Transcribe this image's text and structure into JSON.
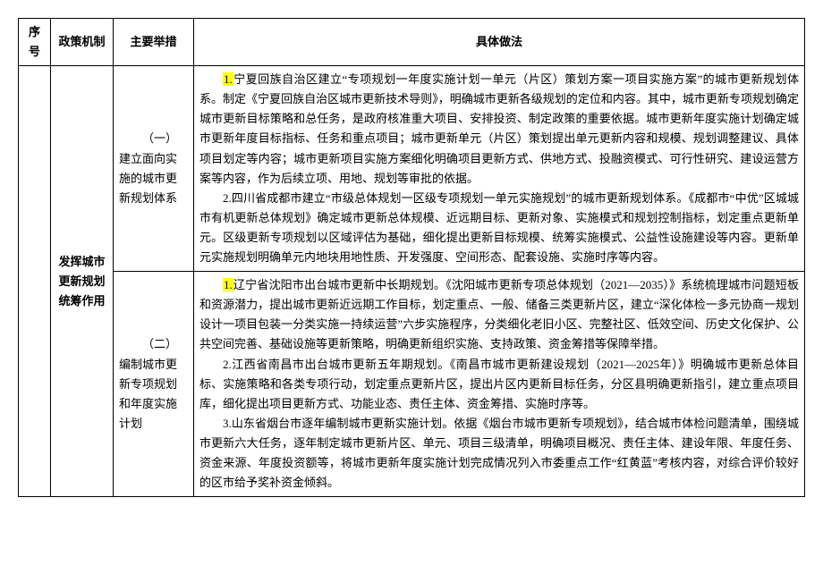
{
  "headers": {
    "seq": "序号",
    "mechanism": "政策机制",
    "measure": "主要举措",
    "detail": "具体做法"
  },
  "row": {
    "mechanism": "发挥城市更新规划统筹作用",
    "measures": {
      "m1": {
        "title": "（一）建立面向实施的城市更新规划体系",
        "p1_hl": "1.",
        "p1_rest": "宁夏回族自治区建立“专项规划一年度实施计划一单元（片区）策划方案一项目实施方案”的城市更新规划体系。制定《宁夏回族自治区城市更新技术导则》，明确城市更新各级规划的定位和内容。其中，城市更新专项规划确定城市更新目标策略和总任务，是政府核准重大项目、安排投资、制定政策的重要依据。城市更新年度实施计划确定城市更新年度目标指标、任务和重点项目；城市更新单元（片区）策划提出单元更新内容和规模、规划调整建议、具体项目划定等内容；城市更新项目实施方案细化明确项目更新方式、供地方式、投融资模式、可行性研究、建设运营方案等内容，作为后续立项、用地、规划等审批的依据。",
        "p2": "2.四川省成都市建立“市级总体规划一区级专项规划一单元实施规划”的城市更新规划体系。《成都市“中优”区城城市有机更新总体规划》确定城市更新总体规模、近远期目标、更新对象、实施模式和规划控制指标，划定重点更新单元。区级更新专项规划以区域评估为基础，细化提出更新目标规模、统筹实施模式、公益性设施建设等内容。更新单元实施规划明确单元内地块用地性质、开发强度、空间形态、配套设施、实施时序等内容。"
      },
      "m2": {
        "title": "（二）编制城市更新专项规划和年度实施计划",
        "p1_hl": "1.",
        "p1_rest": "辽宁省沈阳市出台城市更新中长期规划。《沈阳城市更新专项总体规划（2021—2035）》系统梳理城市问题短板和资源潜力，提出城市更新近远期工作目标，划定重点、一般、储备三类更新片区，建立“深化体检一多元协商一规划设计一项目包装一分类实施一持续运营”六步实施程序，分类细化老旧小区、完整社区、低效空间、历史文化保护、公共空间完善、基础设施等更新策略，明确更新组织实施、支持政策、资金筹措等保障举措。",
        "p2": "2.江西省南昌市出台城市更新五年期规划。《南昌市城市更新建设规划（2021—2025年）》明确城市更新总体目标、实施策略和各类专项行动，划定重点更新片区，提出片区内更新目标任务，分区县明确更新指引，建立重点项目库，细化提出项目更新方式、功能业态、责任主体、资金筹措、实施时序等。",
        "p3": "3.山东省烟台市逐年编制城市更新实施计划。依据《烟台市城市更新专项规划》，结合城市体检问题清单，围绕城市更新六大任务，逐年制定城市更新片区、单元、项目三级清单，明确项目概况、责任主体、建设年限、年度任务、资金来源、年度投资额等，将城市更新年度实施计划完成情况列入市委重点工作“红黄蓝”考核内容，对综合评价较好的区市给予奖补资金倾斜。"
      }
    }
  }
}
